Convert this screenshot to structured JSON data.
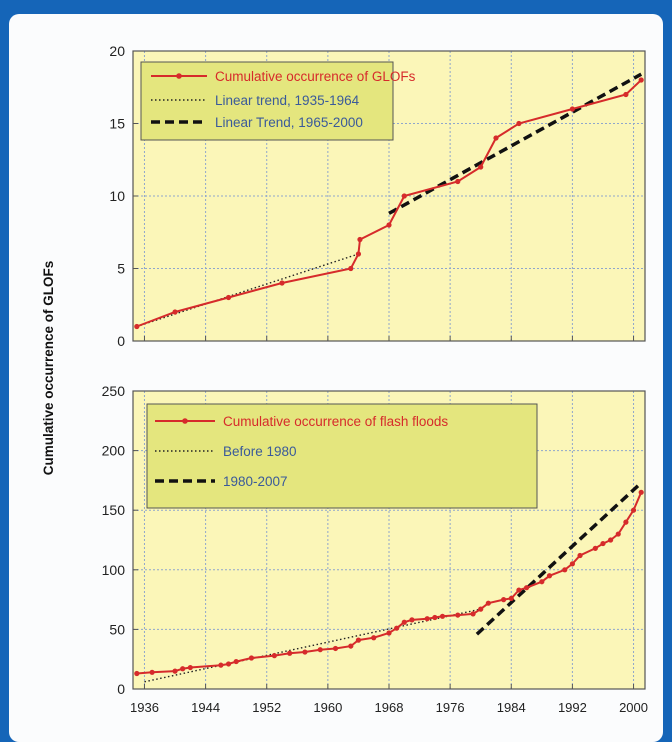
{
  "chart_data": [
    {
      "type": "line",
      "ylabel": "Cumulative occurrence of GLOFs",
      "xlabel": "",
      "xlim": [
        1934.5,
        2001.5
      ],
      "ylim": [
        0,
        20
      ],
      "yticks": [
        0,
        5,
        10,
        15,
        20
      ],
      "xticks": [
        1936,
        1944,
        1952,
        1960,
        1968,
        1976,
        1984,
        1992,
        2000
      ],
      "grid": true,
      "legend": "top-left",
      "series": [
        {
          "name": "Cumulative occurrence of GLOFs",
          "style": "solid-markers",
          "color": "#d62b2b",
          "x": [
            1935,
            1940,
            1947,
            1954,
            1963,
            1964,
            1964.2,
            1968,
            1970,
            1977,
            1980,
            1982,
            1985,
            1992,
            1999,
            2001
          ],
          "y": [
            1,
            2,
            3,
            4,
            5,
            6,
            7,
            8,
            10,
            11,
            12,
            14,
            15,
            16,
            17,
            18
          ]
        },
        {
          "name": "Linear trend, 1935-1964",
          "style": "dotted",
          "color": "#222222",
          "x": [
            1935,
            1964
          ],
          "y": [
            1,
            6
          ]
        },
        {
          "name": "Linear Trend, 1965-2000",
          "style": "dashed",
          "color": "#111111",
          "x": [
            1968,
            2001
          ],
          "y": [
            8.8,
            18.4
          ]
        }
      ]
    },
    {
      "type": "line",
      "ylabel": "",
      "xlabel": "",
      "xlim": [
        1934.5,
        2001.5
      ],
      "ylim": [
        0,
        250
      ],
      "yticks": [
        0,
        50,
        100,
        150,
        200,
        250
      ],
      "xticks": [
        1936,
        1944,
        1952,
        1960,
        1968,
        1976,
        1984,
        1992,
        2000
      ],
      "grid": true,
      "legend": "top-left",
      "series": [
        {
          "name": "Cumulative occurrence of flash floods",
          "style": "solid-markers",
          "color": "#d62b2b",
          "x": [
            1935,
            1937,
            1940,
            1941,
            1942,
            1946,
            1947,
            1948,
            1950,
            1953,
            1955,
            1957,
            1959,
            1961,
            1963,
            1964,
            1966,
            1968,
            1969,
            1970,
            1971,
            1973,
            1974,
            1975,
            1977,
            1979,
            1980,
            1981,
            1983,
            1984,
            1985,
            1986,
            1988,
            1989,
            1991,
            1992,
            1993,
            1995,
            1996,
            1997,
            1998,
            1999,
            2000,
            2001
          ],
          "y": [
            13,
            14,
            15,
            17,
            18,
            20,
            21,
            23,
            26,
            28,
            30,
            31,
            33,
            34,
            36,
            41,
            43,
            47,
            51,
            56,
            58,
            59,
            60,
            61,
            62,
            63,
            67,
            72,
            75,
            76,
            83,
            85,
            90,
            95,
            100,
            105,
            112,
            118,
            122,
            125,
            130,
            140,
            150,
            165
          ]
        },
        {
          "name": "Before 1980",
          "style": "dotted",
          "color": "#222222",
          "x": [
            1936,
            1980
          ],
          "y": [
            6,
            67
          ]
        },
        {
          "name": "1980-2007",
          "style": "dashed",
          "color": "#111111",
          "x": [
            1979.5,
            2001
          ],
          "y": [
            46,
            173
          ]
        }
      ]
    }
  ]
}
